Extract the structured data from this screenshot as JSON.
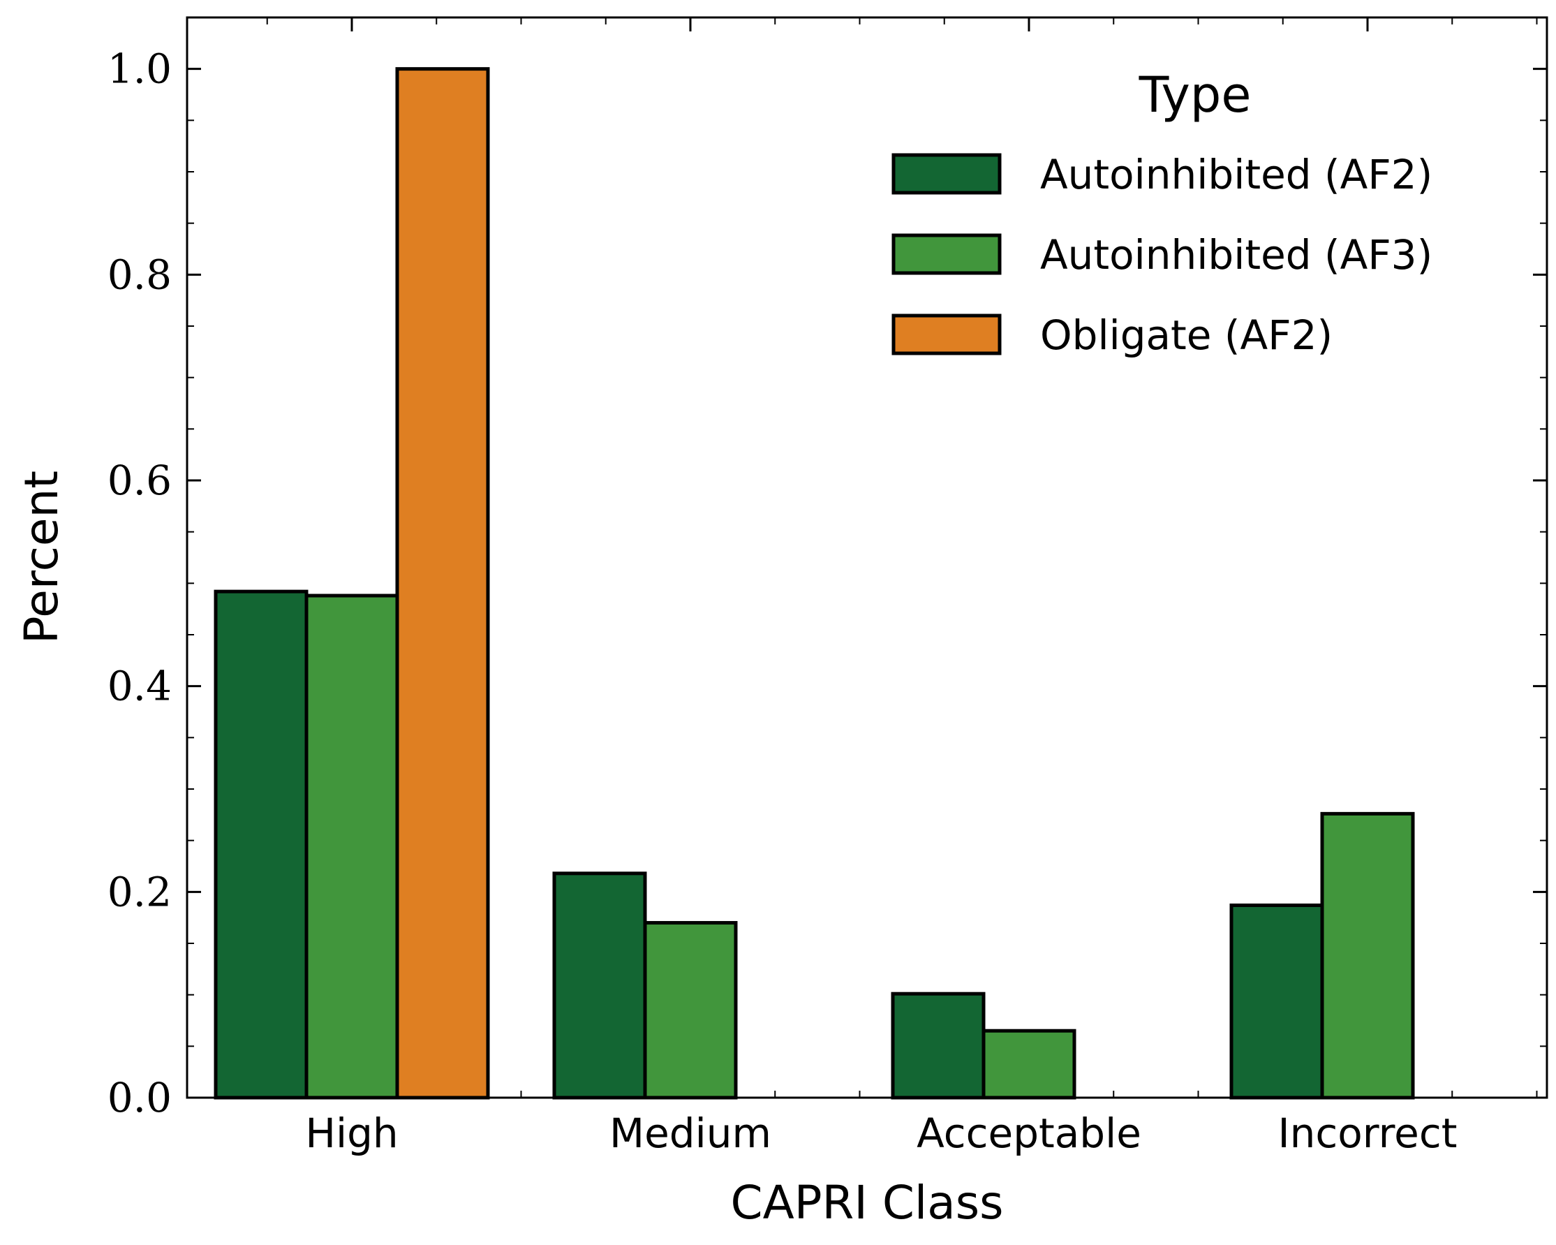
{
  "chart_data": {
    "type": "bar",
    "categories": [
      "High",
      "Medium",
      "Acceptable",
      "Incorrect"
    ],
    "series": [
      {
        "name": "Autoinhibited (AF2)",
        "color": "#136633",
        "values": [
          0.492,
          0.218,
          0.101,
          0.187
        ]
      },
      {
        "name": "Autoinhibited (AF3)",
        "color": "#41963c",
        "values": [
          0.488,
          0.17,
          0.065,
          0.276
        ]
      },
      {
        "name": "Obligate (AF2)",
        "color": "#df7f22",
        "values": [
          1.0,
          0.0,
          0.0,
          0.0
        ]
      }
    ],
    "xlabel": "CAPRI Class",
    "ylabel": "Percent",
    "ylim": [
      0,
      1.05
    ],
    "yticks": [
      "0.0",
      "0.2",
      "0.4",
      "0.6",
      "0.8",
      "1.0"
    ],
    "legend": {
      "title": "Type",
      "position": "top-right"
    },
    "grid": false
  }
}
